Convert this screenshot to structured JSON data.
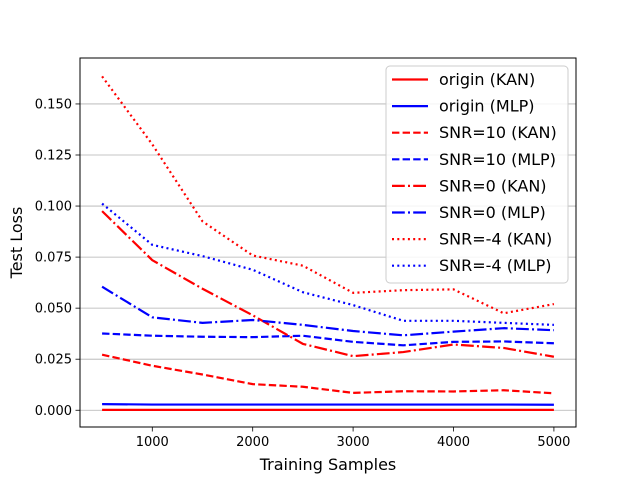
{
  "chart_data": {
    "type": "line",
    "title": "",
    "xlabel": "Training Samples",
    "ylabel": "Test Loss",
    "xlim": [
      280,
      5220
    ],
    "ylim": [
      -0.0082,
      0.1725
    ],
    "xticks": [
      1000,
      2000,
      3000,
      4000,
      5000
    ],
    "xtick_labels": [
      "1000",
      "2000",
      "3000",
      "4000",
      "5000"
    ],
    "yticks": [
      0.0,
      0.025,
      0.05,
      0.075,
      0.1,
      0.125,
      0.15
    ],
    "ytick_labels": [
      "0.000",
      "0.025",
      "0.050",
      "0.075",
      "0.100",
      "0.125",
      "0.150"
    ],
    "grid": "horizontal",
    "legend_position": "top-right",
    "x": [
      500,
      1000,
      1500,
      2000,
      2500,
      3000,
      3500,
      4000,
      4500,
      5000
    ],
    "series": [
      {
        "name": "origin (KAN)",
        "color": "#ff0000",
        "style": "solid",
        "values": [
          0.0002,
          0.0002,
          0.0002,
          0.0002,
          0.0002,
          0.0002,
          0.0002,
          0.0002,
          0.0002,
          0.0002
        ]
      },
      {
        "name": "origin (MLP)",
        "color": "#0000ff",
        "style": "solid",
        "values": [
          0.003,
          0.0028,
          0.0028,
          0.0028,
          0.0028,
          0.0028,
          0.0028,
          0.0028,
          0.0028,
          0.0027
        ]
      },
      {
        "name": "SNR=10 (KAN)",
        "color": "#ff0000",
        "style": "dashed",
        "values": [
          0.0272,
          0.0218,
          0.0175,
          0.0128,
          0.0115,
          0.0085,
          0.0093,
          0.0092,
          0.0098,
          0.0083
        ]
      },
      {
        "name": "SNR=10 (MLP)",
        "color": "#0000ff",
        "style": "dashed",
        "values": [
          0.0376,
          0.0365,
          0.036,
          0.0358,
          0.0365,
          0.0335,
          0.0318,
          0.0335,
          0.0337,
          0.0328
        ]
      },
      {
        "name": "SNR=0 (KAN)",
        "color": "#ff0000",
        "style": "dashdot",
        "values": [
          0.0975,
          0.0735,
          0.0595,
          0.0465,
          0.0325,
          0.0265,
          0.0285,
          0.0322,
          0.0305,
          0.0262
        ]
      },
      {
        "name": "SNR=0 (MLP)",
        "color": "#0000ff",
        "style": "dashdot",
        "values": [
          0.0605,
          0.0455,
          0.0428,
          0.0442,
          0.0418,
          0.0388,
          0.0367,
          0.0385,
          0.0402,
          0.0392
        ]
      },
      {
        "name": "SNR=-4 (KAN)",
        "color": "#ff0000",
        "style": "dotted",
        "values": [
          0.1635,
          0.1302,
          0.0925,
          0.0758,
          0.0708,
          0.0575,
          0.0588,
          0.0592,
          0.0475,
          0.052
        ]
      },
      {
        "name": "SNR=-4 (MLP)",
        "color": "#0000ff",
        "style": "dotted",
        "values": [
          0.1012,
          0.081,
          0.0755,
          0.0688,
          0.0578,
          0.0515,
          0.0438,
          0.0438,
          0.0428,
          0.0418
        ]
      }
    ]
  }
}
